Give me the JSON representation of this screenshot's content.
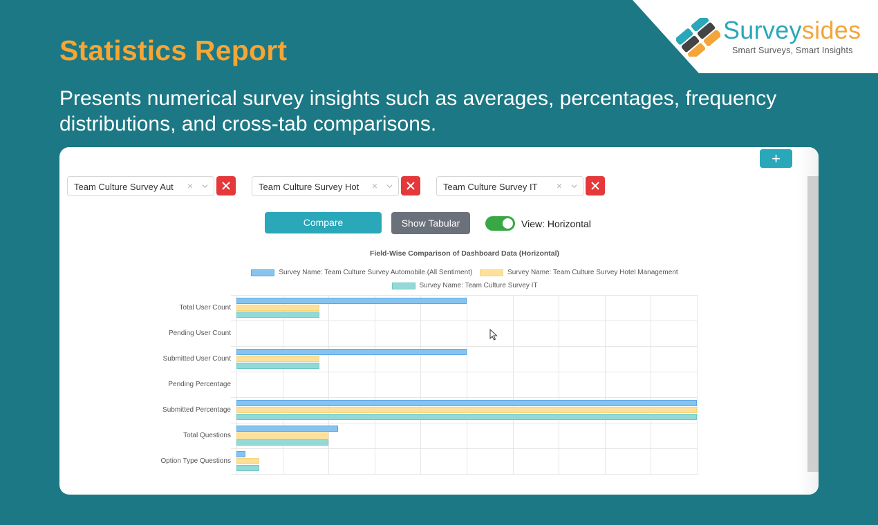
{
  "header": {
    "title": "Statistics Report",
    "description": "Presents numerical survey insights such as averages, percentages, frequency distributions, and cross-tab comparisons."
  },
  "brand": {
    "name_part1": "Survey",
    "name_part2": "sides",
    "tagline": "Smart Surveys, Smart Insights",
    "colors": {
      "teal": "#2aa7b9",
      "orange": "#f3a53a"
    }
  },
  "controls": {
    "add_label": "+",
    "selects": [
      {
        "value": "Team Culture Survey Aut",
        "clear": "×"
      },
      {
        "value": "Team Culture Survey Hot",
        "clear": "×"
      },
      {
        "value": "Team Culture Survey IT",
        "clear": "×"
      }
    ],
    "compare_label": "Compare",
    "tabular_label": "Show Tabular",
    "view_toggle_label": "View: Horizontal",
    "view_toggle_on": true
  },
  "chart_data": {
    "type": "bar",
    "orientation": "horizontal",
    "title": "Field-Wise Comparison of Dashboard Data (Horizontal)",
    "xlabel": "",
    "ylabel": "",
    "xlim": [
      0,
      100
    ],
    "grid": true,
    "legend_position": "top",
    "categories": [
      "Total User Count",
      "Pending User Count",
      "Submitted User Count",
      "Pending Percentage",
      "Submitted Percentage",
      "Total Questions",
      "Option Type Questions"
    ],
    "series": [
      {
        "name": "Survey Name: Team Culture Survey Automobile (All Sentiment)",
        "color": "#86c3ee",
        "border": "#5aa9e6",
        "values": [
          50,
          0,
          50,
          0,
          100,
          22,
          2
        ]
      },
      {
        "name": "Survey Name: Team Culture Survey Hotel Management",
        "color": "#fde19a",
        "border": "#f8d57a",
        "values": [
          18,
          0,
          18,
          0,
          100,
          20,
          5
        ]
      },
      {
        "name": "Survey Name: Team Culture Survey IT",
        "color": "#93d9d7",
        "border": "#6cc8c5",
        "values": [
          18,
          0,
          18,
          0,
          100,
          20,
          5
        ]
      }
    ]
  }
}
